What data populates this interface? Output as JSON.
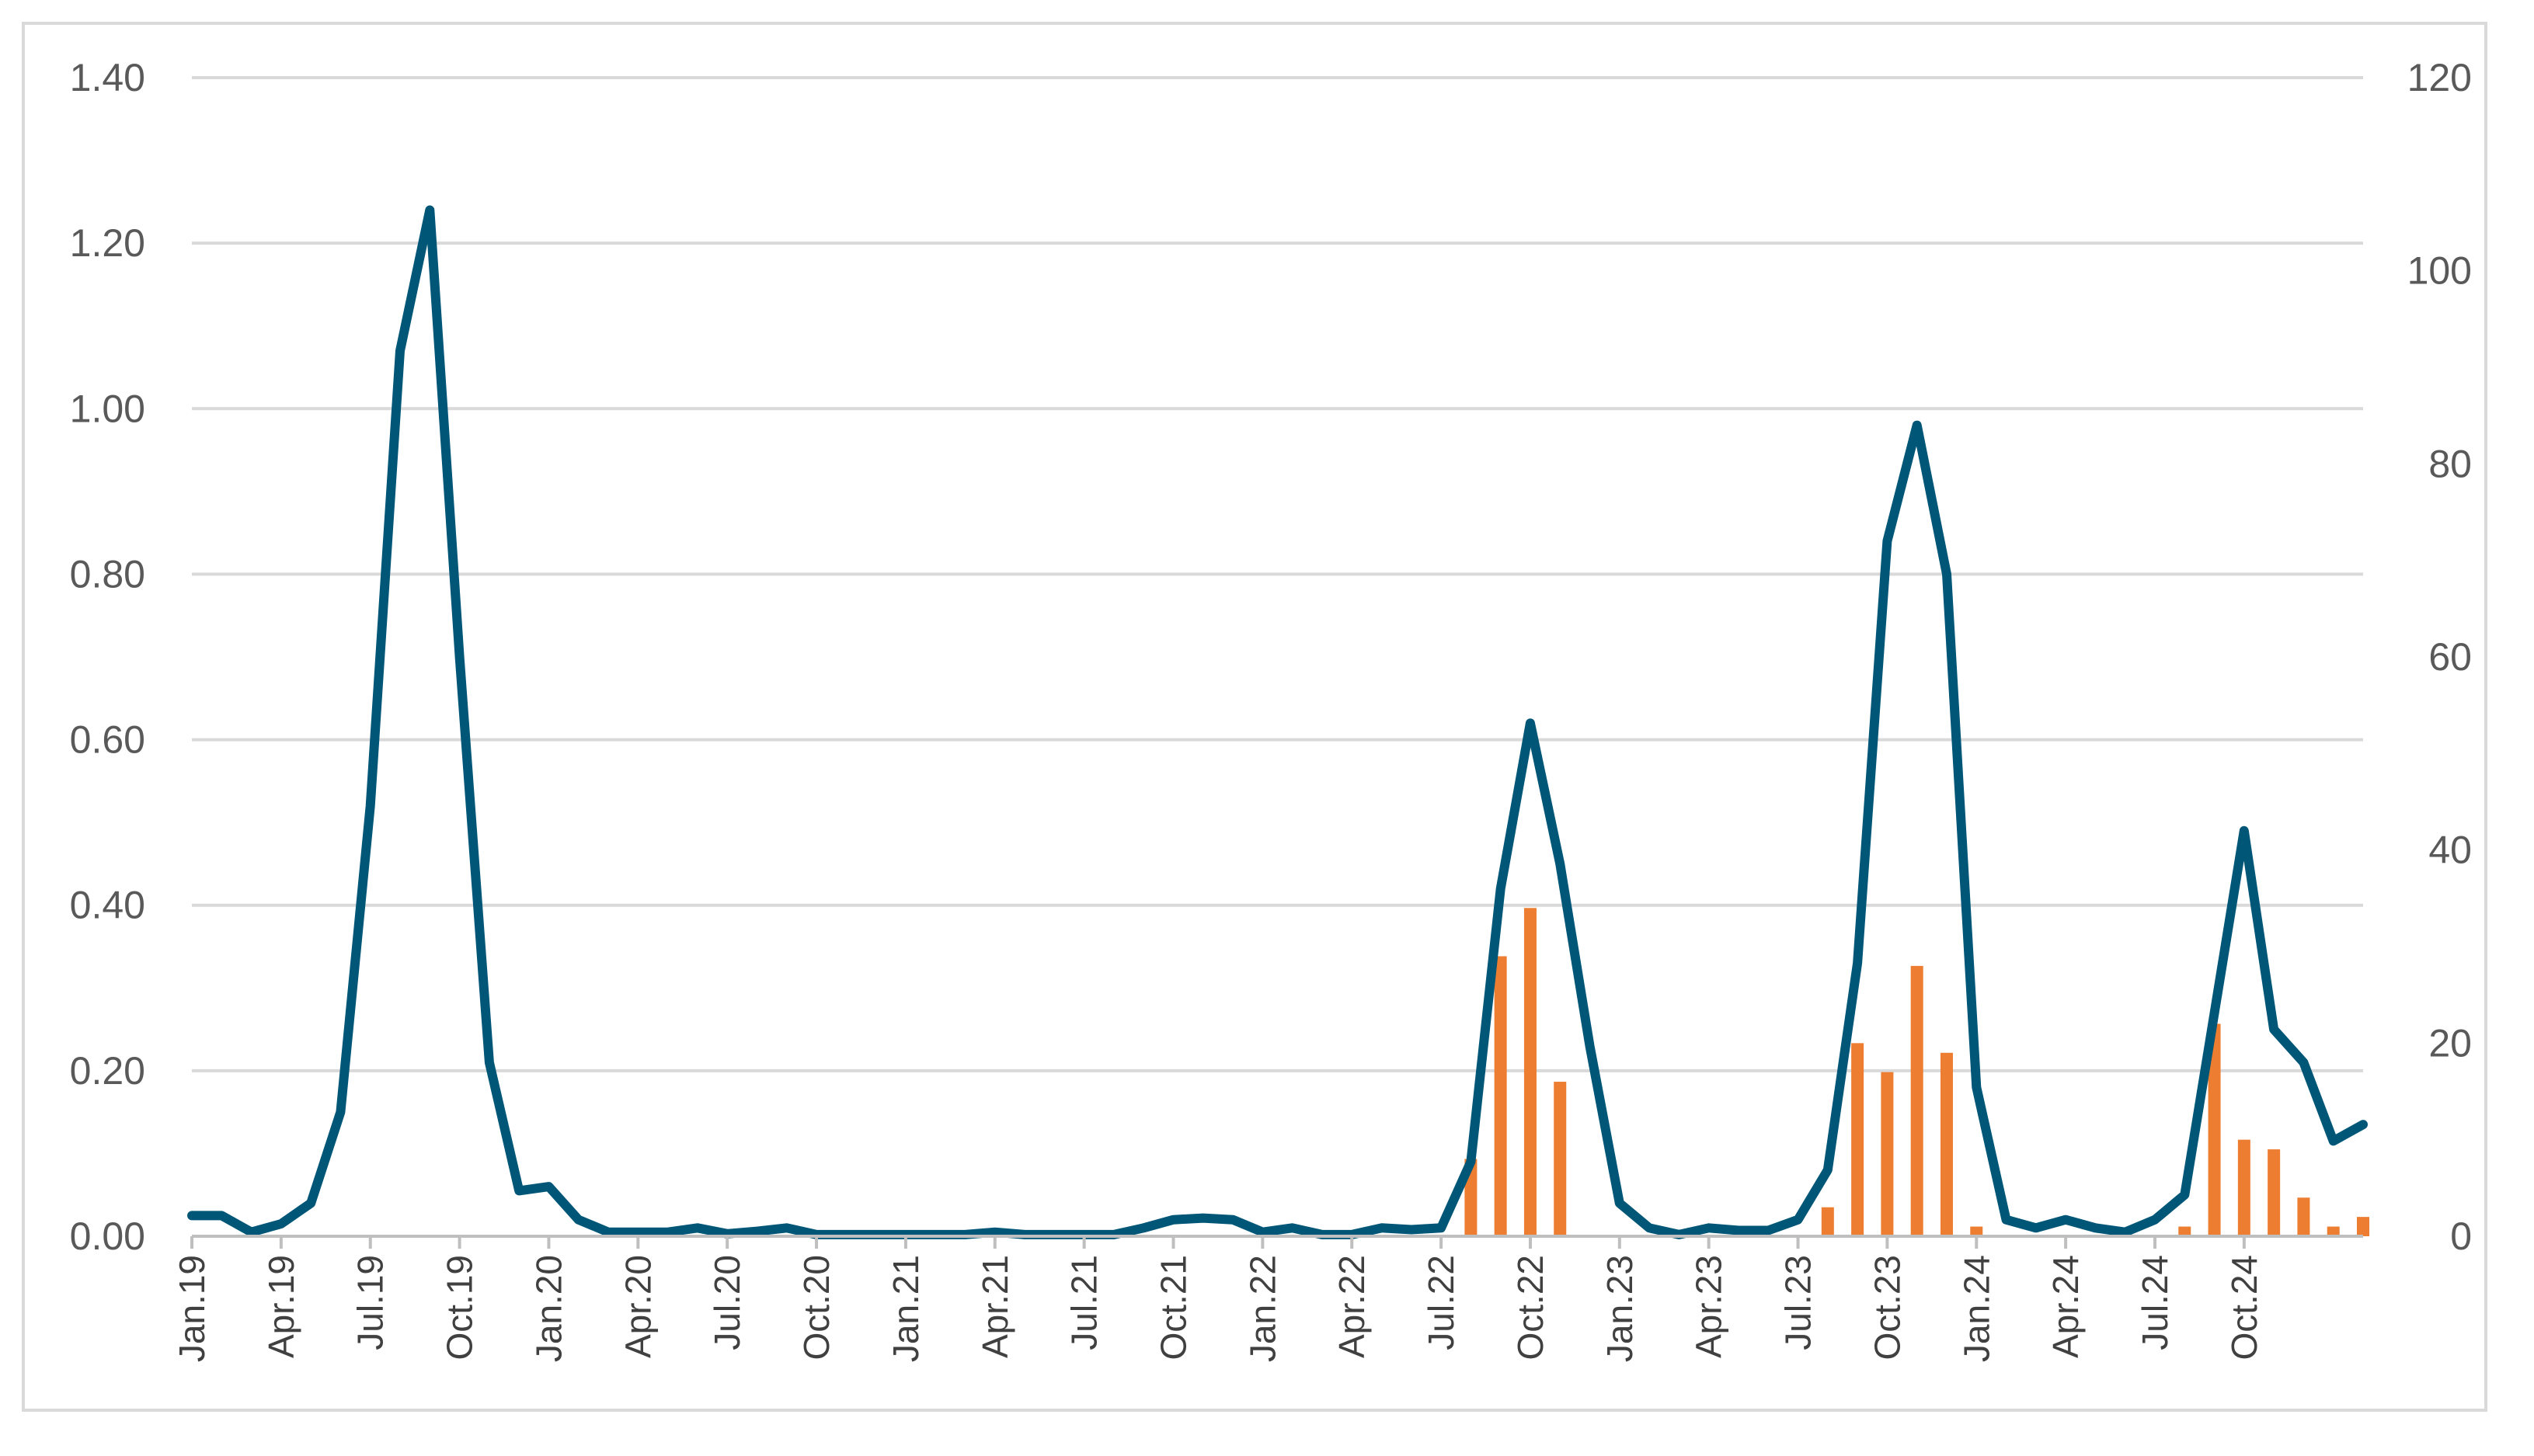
{
  "chart_data": {
    "type": "line",
    "title": "",
    "xlabel": "",
    "ylabel": "",
    "grid": true,
    "legend": "none",
    "colors": {
      "line": "#005677",
      "bars": "#ED7D31",
      "grid": "#d9d9d9",
      "text": "#595959"
    },
    "x_tick_labels": [
      "Jan.19",
      "Apr.19",
      "Jul.19",
      "Oct.19",
      "Jan.20",
      "Apr.20",
      "Jul.20",
      "Oct.20",
      "Jan.21",
      "Apr.21",
      "Jul.21",
      "Oct.21",
      "Jan.22",
      "Apr.22",
      "Jul.22",
      "Oct.22",
      "Jan.23",
      "Apr.23",
      "Jul.23",
      "Oct.23",
      "Jan.24",
      "Apr.24",
      "Jul.24",
      "Oct.24"
    ],
    "y_left": {
      "ticks": [
        "0.00",
        "0.20",
        "0.40",
        "0.60",
        "0.80",
        "1.00",
        "1.20",
        "1.40"
      ],
      "range": [
        0,
        1.4
      ]
    },
    "y_right": {
      "ticks": [
        "0",
        "20",
        "40",
        "60",
        "80",
        "100",
        "120"
      ],
      "range": [
        0,
        120
      ]
    },
    "series": [
      {
        "type": "line",
        "axis": "left",
        "values": [
          0.025,
          0.025,
          0.005,
          0.015,
          0.04,
          0.15,
          0.52,
          1.07,
          1.24,
          0.7,
          0.21,
          0.055,
          0.06,
          0.02,
          0.005,
          0.005,
          0.005,
          0.01,
          0.003,
          0.006,
          0.01,
          0.002,
          0.002,
          0.002,
          0.002,
          0.002,
          0.002,
          0.005,
          0.002,
          0.002,
          0.002,
          0.002,
          0.01,
          0.02,
          0.022,
          0.02,
          0.005,
          0.01,
          0.002,
          0.002,
          0.01,
          0.008,
          0.01,
          0.09,
          0.42,
          0.62,
          0.45,
          0.23,
          0.04,
          0.01,
          0.002,
          0.01,
          0.007,
          0.007,
          0.02,
          0.08,
          0.33,
          0.84,
          0.98,
          0.8,
          0.18,
          0.02,
          0.01,
          0.02,
          0.01,
          0.005,
          0.02,
          0.05,
          0.27,
          0.49,
          0.25,
          0.21,
          0.115,
          0.135
        ]
      },
      {
        "type": "bar",
        "axis": "right",
        "values": [
          0,
          0,
          0,
          0,
          0,
          0,
          0,
          0,
          0,
          0,
          0,
          0,
          0,
          0,
          0,
          0,
          0,
          0,
          0,
          0,
          0,
          0,
          0,
          0,
          0,
          0,
          0,
          0,
          0,
          0,
          0,
          0,
          0,
          0,
          0,
          0,
          0,
          0,
          0,
          0,
          0,
          0,
          0,
          8,
          29,
          34,
          16,
          0,
          0,
          0,
          0,
          0,
          0,
          0,
          0,
          3,
          20,
          17,
          28,
          19,
          1,
          0,
          0,
          0,
          0,
          0,
          0,
          1,
          22,
          10,
          9,
          4,
          1,
          2
        ]
      }
    ]
  }
}
